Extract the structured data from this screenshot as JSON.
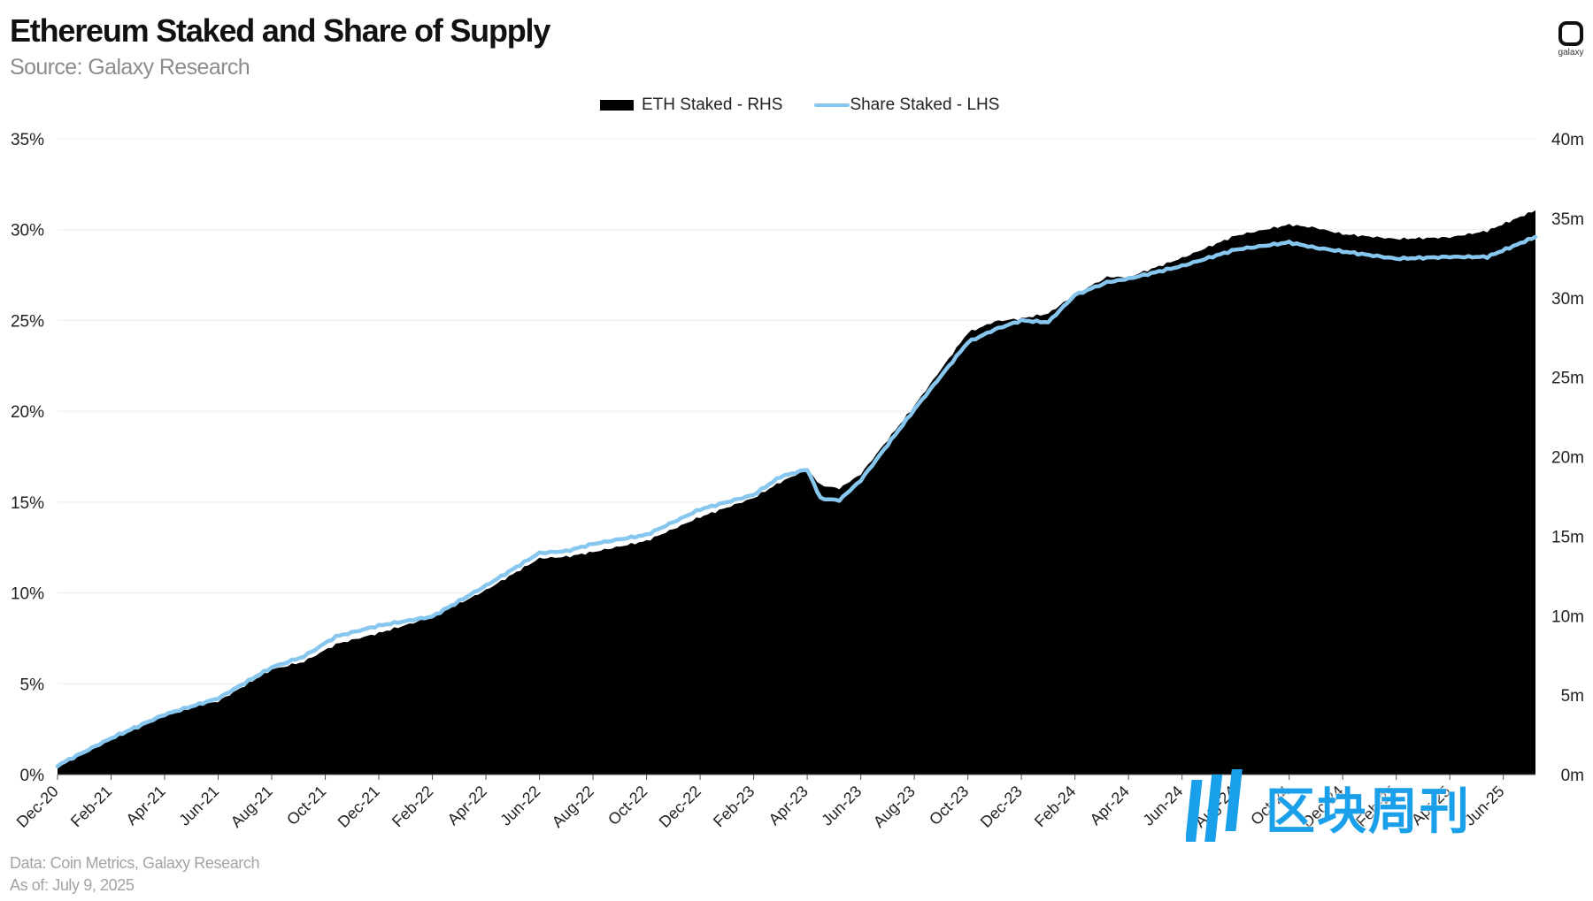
{
  "header": {
    "title": "Ethereum Staked and Share of Supply",
    "subtitle": "Source: Galaxy Research",
    "logo_text": "galaxy"
  },
  "legend": {
    "area_label": "ETH Staked - RHS",
    "line_label": "Share Staked - LHS"
  },
  "footer": {
    "data_source": "Data: Coin Metrics, Galaxy Research",
    "as_of": "As of: July 9, 2025"
  },
  "watermark": {
    "text": "区块周刊"
  },
  "colors": {
    "area": "#000000",
    "line": "#87c6ee",
    "grid": "#ececec",
    "watermark": "#1aa0ea"
  },
  "chart_data": {
    "type": "area",
    "title": "Ethereum Staked and Share of Supply",
    "categories": [
      "Dec-20",
      "Feb-21",
      "Apr-21",
      "Jun-21",
      "Aug-21",
      "Oct-21",
      "Dec-21",
      "Feb-22",
      "Apr-22",
      "Jun-22",
      "Aug-22",
      "Oct-22",
      "Dec-22",
      "Feb-23",
      "Apr-23",
      "Jun-23",
      "Aug-23",
      "Oct-23",
      "Dec-23",
      "Feb-24",
      "Apr-24",
      "Jun-24",
      "Aug-24",
      "Oct-24",
      "Dec-24",
      "Feb-25",
      "Apr-25",
      "Jun-25"
    ],
    "left_axis": {
      "ticks": [
        "0%",
        "5%",
        "10%",
        "15%",
        "20%",
        "25%",
        "30%",
        "35%"
      ],
      "ylim": [
        0,
        35
      ]
    },
    "right_axis": {
      "ticks": [
        "0m",
        "5m",
        "10m",
        "15m",
        "20m",
        "25m",
        "30m",
        "35m",
        "40m"
      ],
      "ylim": [
        0,
        40
      ]
    },
    "grid": true,
    "legend_position": "top-center",
    "series": [
      {
        "name": "ETH Staked - RHS",
        "axis": "right",
        "type": "area",
        "unit": "m",
        "points": [
          [
            0,
            0.6
          ],
          [
            1.0,
            2.4
          ],
          [
            2.0,
            3.9
          ],
          [
            3.0,
            4.6
          ],
          [
            4.0,
            6.6
          ],
          [
            4.6,
            7.1
          ],
          [
            5.2,
            8.2
          ],
          [
            6.0,
            8.9
          ],
          [
            7.0,
            9.9
          ],
          [
            8.0,
            11.6
          ],
          [
            9.0,
            13.6
          ],
          [
            9.5,
            13.7
          ],
          [
            10.0,
            14.0
          ],
          [
            11.0,
            14.7
          ],
          [
            12.0,
            16.2
          ],
          [
            13.0,
            17.4
          ],
          [
            13.5,
            18.4
          ],
          [
            14.0,
            19.2
          ],
          [
            14.25,
            18.2
          ],
          [
            14.6,
            18.0
          ],
          [
            15.0,
            18.9
          ],
          [
            16.0,
            23.2
          ],
          [
            17.0,
            27.8
          ],
          [
            17.5,
            28.5
          ],
          [
            18.0,
            28.7
          ],
          [
            18.5,
            29.0
          ],
          [
            19.0,
            30.2
          ],
          [
            19.6,
            31.3
          ],
          [
            20.0,
            31.3
          ],
          [
            21.0,
            32.5
          ],
          [
            22.0,
            33.9
          ],
          [
            23.0,
            34.6
          ],
          [
            23.5,
            34.4
          ],
          [
            24.0,
            34.0
          ],
          [
            25.0,
            33.7
          ],
          [
            26.0,
            33.8
          ],
          [
            26.7,
            34.2
          ],
          [
            27.6,
            35.5
          ]
        ]
      },
      {
        "name": "Share Staked - LHS",
        "axis": "left",
        "type": "line",
        "unit": "%",
        "points": [
          [
            0,
            0.5
          ],
          [
            1.0,
            2.0
          ],
          [
            2.0,
            3.3
          ],
          [
            3.0,
            4.2
          ],
          [
            4.0,
            5.9
          ],
          [
            4.6,
            6.5
          ],
          [
            5.2,
            7.6
          ],
          [
            6.0,
            8.2
          ],
          [
            7.0,
            8.7
          ],
          [
            8.0,
            10.4
          ],
          [
            9.0,
            12.2
          ],
          [
            9.5,
            12.3
          ],
          [
            10.0,
            12.7
          ],
          [
            11.0,
            13.2
          ],
          [
            12.0,
            14.6
          ],
          [
            13.0,
            15.4
          ],
          [
            13.5,
            16.4
          ],
          [
            14.0,
            16.8
          ],
          [
            14.25,
            15.2
          ],
          [
            14.6,
            15.1
          ],
          [
            15.0,
            16.2
          ],
          [
            16.0,
            20.1
          ],
          [
            17.0,
            23.8
          ],
          [
            17.5,
            24.5
          ],
          [
            18.0,
            25.0
          ],
          [
            18.5,
            24.9
          ],
          [
            19.0,
            26.4
          ],
          [
            19.6,
            27.1
          ],
          [
            20.0,
            27.3
          ],
          [
            21.0,
            28.0
          ],
          [
            22.0,
            28.9
          ],
          [
            23.0,
            29.3
          ],
          [
            23.5,
            29.0
          ],
          [
            24.0,
            28.8
          ],
          [
            25.0,
            28.4
          ],
          [
            26.0,
            28.5
          ],
          [
            26.7,
            28.5
          ],
          [
            27.6,
            29.6
          ]
        ]
      }
    ]
  }
}
